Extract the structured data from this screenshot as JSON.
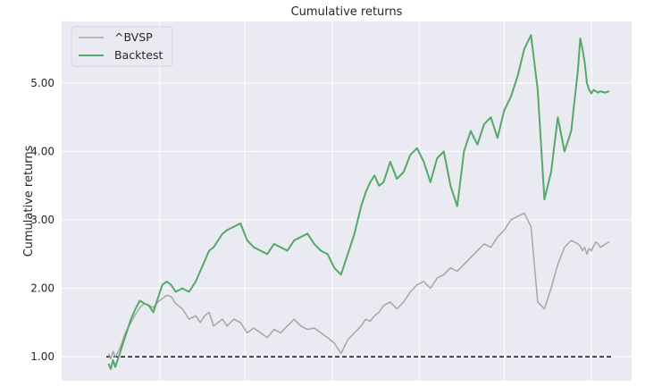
{
  "chart_data": {
    "type": "line",
    "title": "Cumulative returns",
    "xlabel": "",
    "ylabel": "Cumulative returns",
    "ylim": [
      0.65,
      5.9
    ],
    "yticks": [
      1.0,
      2.0,
      3.0,
      4.0,
      5.0
    ],
    "ytick_labels": [
      "1.00",
      "2.00",
      "3.00",
      "4.00",
      "5.00"
    ],
    "x": [
      0,
      0.1,
      0.2,
      0.3,
      0.5,
      0.75,
      1,
      1.2,
      1.4,
      1.6,
      1.8,
      2.0,
      2.2,
      2.4,
      2.6,
      2.8,
      3.0,
      3.3,
      3.6,
      3.9,
      4.1,
      4.3,
      4.5,
      4.7,
      4.9,
      5.1,
      5.3,
      5.6,
      5.9,
      6.2,
      6.5,
      6.8,
      7.1,
      7.4,
      7.7,
      8.0,
      8.3,
      8.6,
      8.9,
      9.2,
      9.5,
      9.8,
      10.1,
      10.4,
      10.7,
      11.0,
      11.3,
      11.5,
      11.7,
      11.9,
      12.1,
      12.3,
      12.6,
      12.9,
      13.2,
      13.5,
      13.8,
      14.1,
      14.4,
      14.7,
      15.0,
      15.3,
      15.6,
      15.9,
      16.2,
      16.5,
      16.8,
      17.1,
      17.4,
      17.7,
      18.0,
      18.3,
      18.6,
      18.9,
      19.2,
      19.5,
      19.8,
      20.1,
      20.4,
      20.7,
      21.0,
      21.1,
      21.2,
      21.3,
      21.4,
      21.5,
      21.6,
      21.7,
      21.8,
      21.9,
      22.0,
      22.1,
      22.2,
      22.3,
      22.4
    ],
    "series": [
      {
        "name": "^BVSP",
        "color": "#a6a6a6",
        "values": [
          1.05,
          0.97,
          1.08,
          1.0,
          1.12,
          1.35,
          1.5,
          1.62,
          1.72,
          1.78,
          1.75,
          1.72,
          1.8,
          1.85,
          1.9,
          1.88,
          1.78,
          1.7,
          1.55,
          1.6,
          1.5,
          1.6,
          1.65,
          1.45,
          1.5,
          1.55,
          1.45,
          1.55,
          1.5,
          1.35,
          1.42,
          1.35,
          1.28,
          1.4,
          1.35,
          1.45,
          1.55,
          1.45,
          1.4,
          1.42,
          1.35,
          1.28,
          1.2,
          1.05,
          1.25,
          1.35,
          1.45,
          1.55,
          1.52,
          1.6,
          1.65,
          1.75,
          1.8,
          1.7,
          1.8,
          1.95,
          2.05,
          2.1,
          2.0,
          2.15,
          2.2,
          2.3,
          2.25,
          2.35,
          2.45,
          2.55,
          2.65,
          2.6,
          2.75,
          2.85,
          3.0,
          3.05,
          3.1,
          2.9,
          1.8,
          1.7,
          2.0,
          2.35,
          2.6,
          2.7,
          2.65,
          2.62,
          2.55,
          2.6,
          2.5,
          2.58,
          2.55,
          2.62,
          2.68,
          2.65,
          2.6,
          2.62,
          2.64,
          2.66,
          2.68
        ]
      },
      {
        "name": "Backtest",
        "color": "#55a868",
        "values": [
          0.9,
          0.82,
          0.95,
          0.85,
          1.05,
          1.3,
          1.55,
          1.7,
          1.82,
          1.78,
          1.75,
          1.65,
          1.85,
          2.05,
          2.1,
          2.05,
          1.95,
          2.0,
          1.95,
          2.1,
          2.25,
          2.4,
          2.55,
          2.6,
          2.7,
          2.8,
          2.85,
          2.9,
          2.95,
          2.7,
          2.6,
          2.55,
          2.5,
          2.65,
          2.6,
          2.55,
          2.7,
          2.75,
          2.8,
          2.65,
          2.55,
          2.5,
          2.3,
          2.2,
          2.5,
          2.8,
          3.2,
          3.4,
          3.55,
          3.65,
          3.5,
          3.55,
          3.85,
          3.6,
          3.7,
          3.95,
          4.05,
          3.85,
          3.55,
          3.9,
          4.0,
          3.5,
          3.2,
          4.0,
          4.3,
          4.1,
          4.4,
          4.5,
          4.2,
          4.6,
          4.8,
          5.1,
          5.5,
          5.7,
          4.9,
          3.3,
          3.7,
          4.5,
          4.0,
          4.3,
          5.2,
          5.65,
          5.5,
          5.3,
          5.0,
          4.9,
          4.85,
          4.9,
          4.88,
          4.86,
          4.88,
          4.87,
          4.86,
          4.87,
          4.88
        ]
      }
    ],
    "reference_line": {
      "y": 1.0,
      "style": "dashed",
      "color": "#000000"
    },
    "legend": {
      "position": "top-left"
    },
    "grid": true
  }
}
